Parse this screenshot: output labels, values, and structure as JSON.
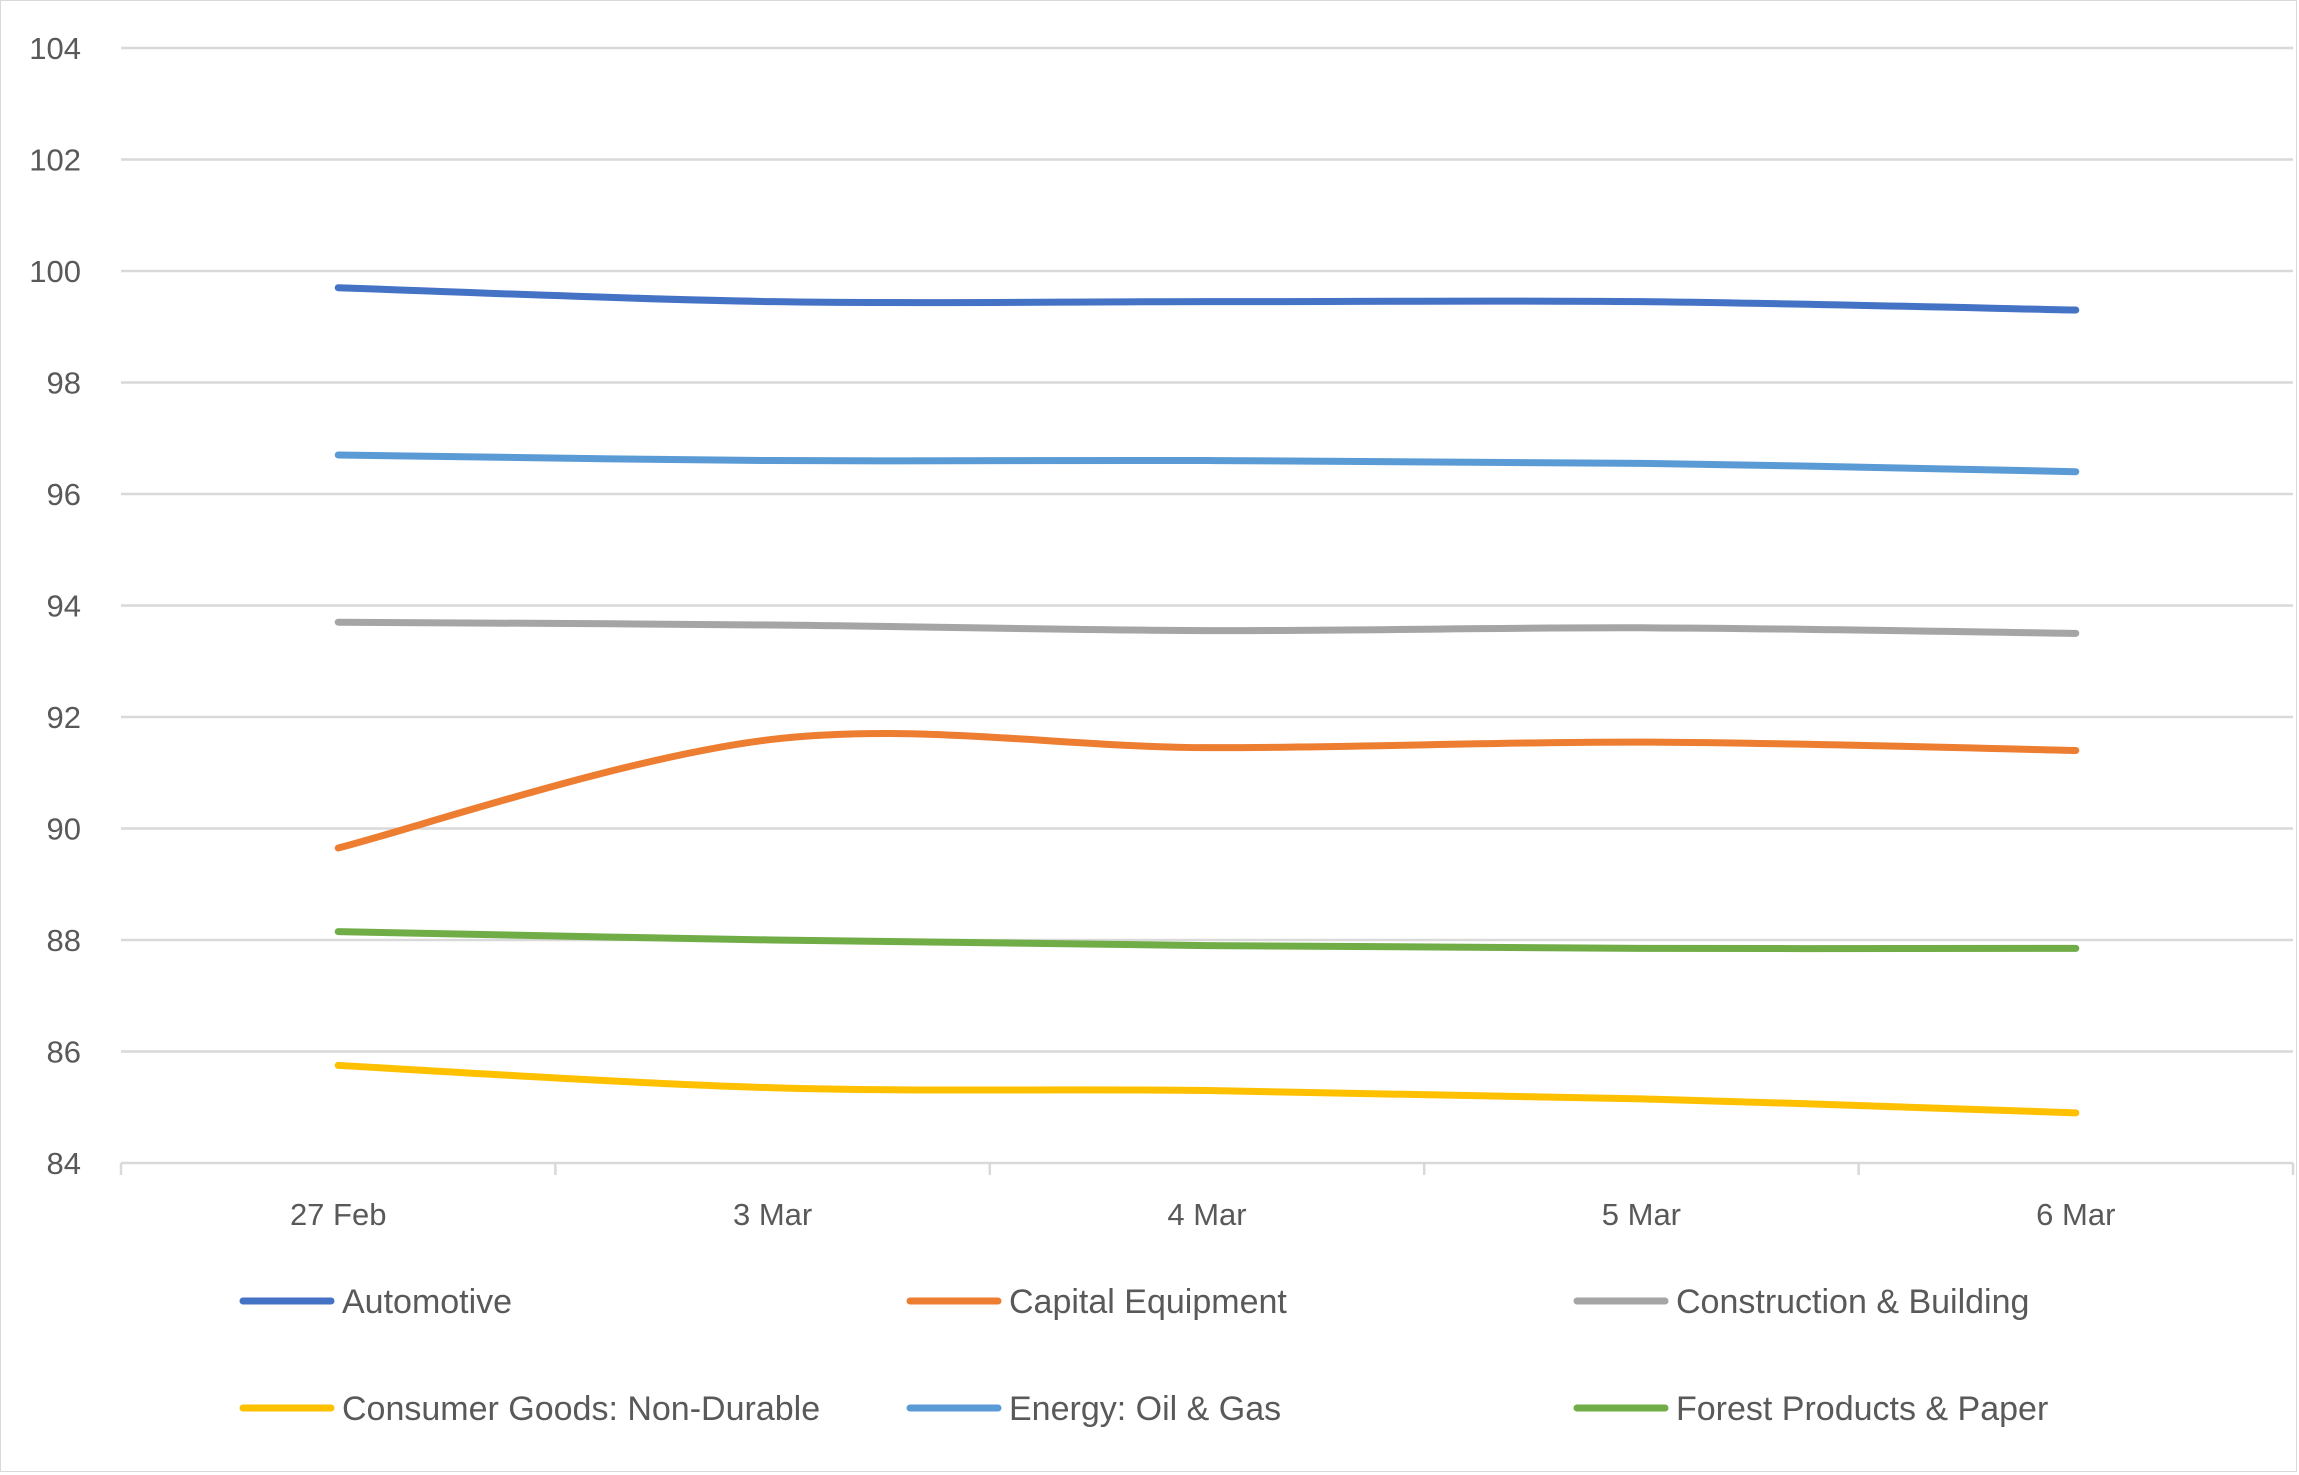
{
  "chart_data": {
    "type": "line",
    "title": "",
    "xlabel": "",
    "ylabel": "",
    "categories": [
      "27 Feb",
      "3 Mar",
      "4 Mar",
      "5 Mar",
      "6 Mar"
    ],
    "ylim": [
      84,
      104
    ],
    "yticks": [
      84,
      86,
      88,
      90,
      92,
      94,
      96,
      98,
      100,
      102,
      104
    ],
    "grid": true,
    "smooth": true,
    "legend_position": "bottom",
    "series": [
      {
        "name": "Automotive",
        "color": "#4472C4",
        "values": [
          99.7,
          99.45,
          99.45,
          99.45,
          99.3
        ]
      },
      {
        "name": "Capital Equipment",
        "color": "#ED7D31",
        "values": [
          89.65,
          91.6,
          91.45,
          91.55,
          91.4
        ]
      },
      {
        "name": "Construction & Building",
        "color": "#A5A5A5",
        "values": [
          93.7,
          93.65,
          93.55,
          93.6,
          93.5
        ]
      },
      {
        "name": "Consumer Goods: Non-Durable",
        "color": "#FFC000",
        "values": [
          85.75,
          85.35,
          85.3,
          85.15,
          84.9
        ]
      },
      {
        "name": "Energy: Oil & Gas",
        "color": "#5B9BD5",
        "values": [
          96.7,
          96.6,
          96.6,
          96.55,
          96.4
        ]
      },
      {
        "name": "Forest Products & Paper",
        "color": "#70AD47",
        "values": [
          88.15,
          88.0,
          87.9,
          87.85,
          87.85
        ]
      }
    ]
  },
  "legend": {
    "items": [
      {
        "label": "Automotive",
        "color": "#4472C4"
      },
      {
        "label": "Capital Equipment",
        "color": "#ED7D31"
      },
      {
        "label": "Construction & Building",
        "color": "#A5A5A5"
      },
      {
        "label": "Consumer Goods: Non-Durable",
        "color": "#FFC000"
      },
      {
        "label": "Energy: Oil & Gas",
        "color": "#5B9BD5"
      },
      {
        "label": "Forest Products & Paper",
        "color": "#70AD47"
      }
    ]
  },
  "style": {
    "gridline_color": "#D9D9D9",
    "text_color": "#595959"
  }
}
